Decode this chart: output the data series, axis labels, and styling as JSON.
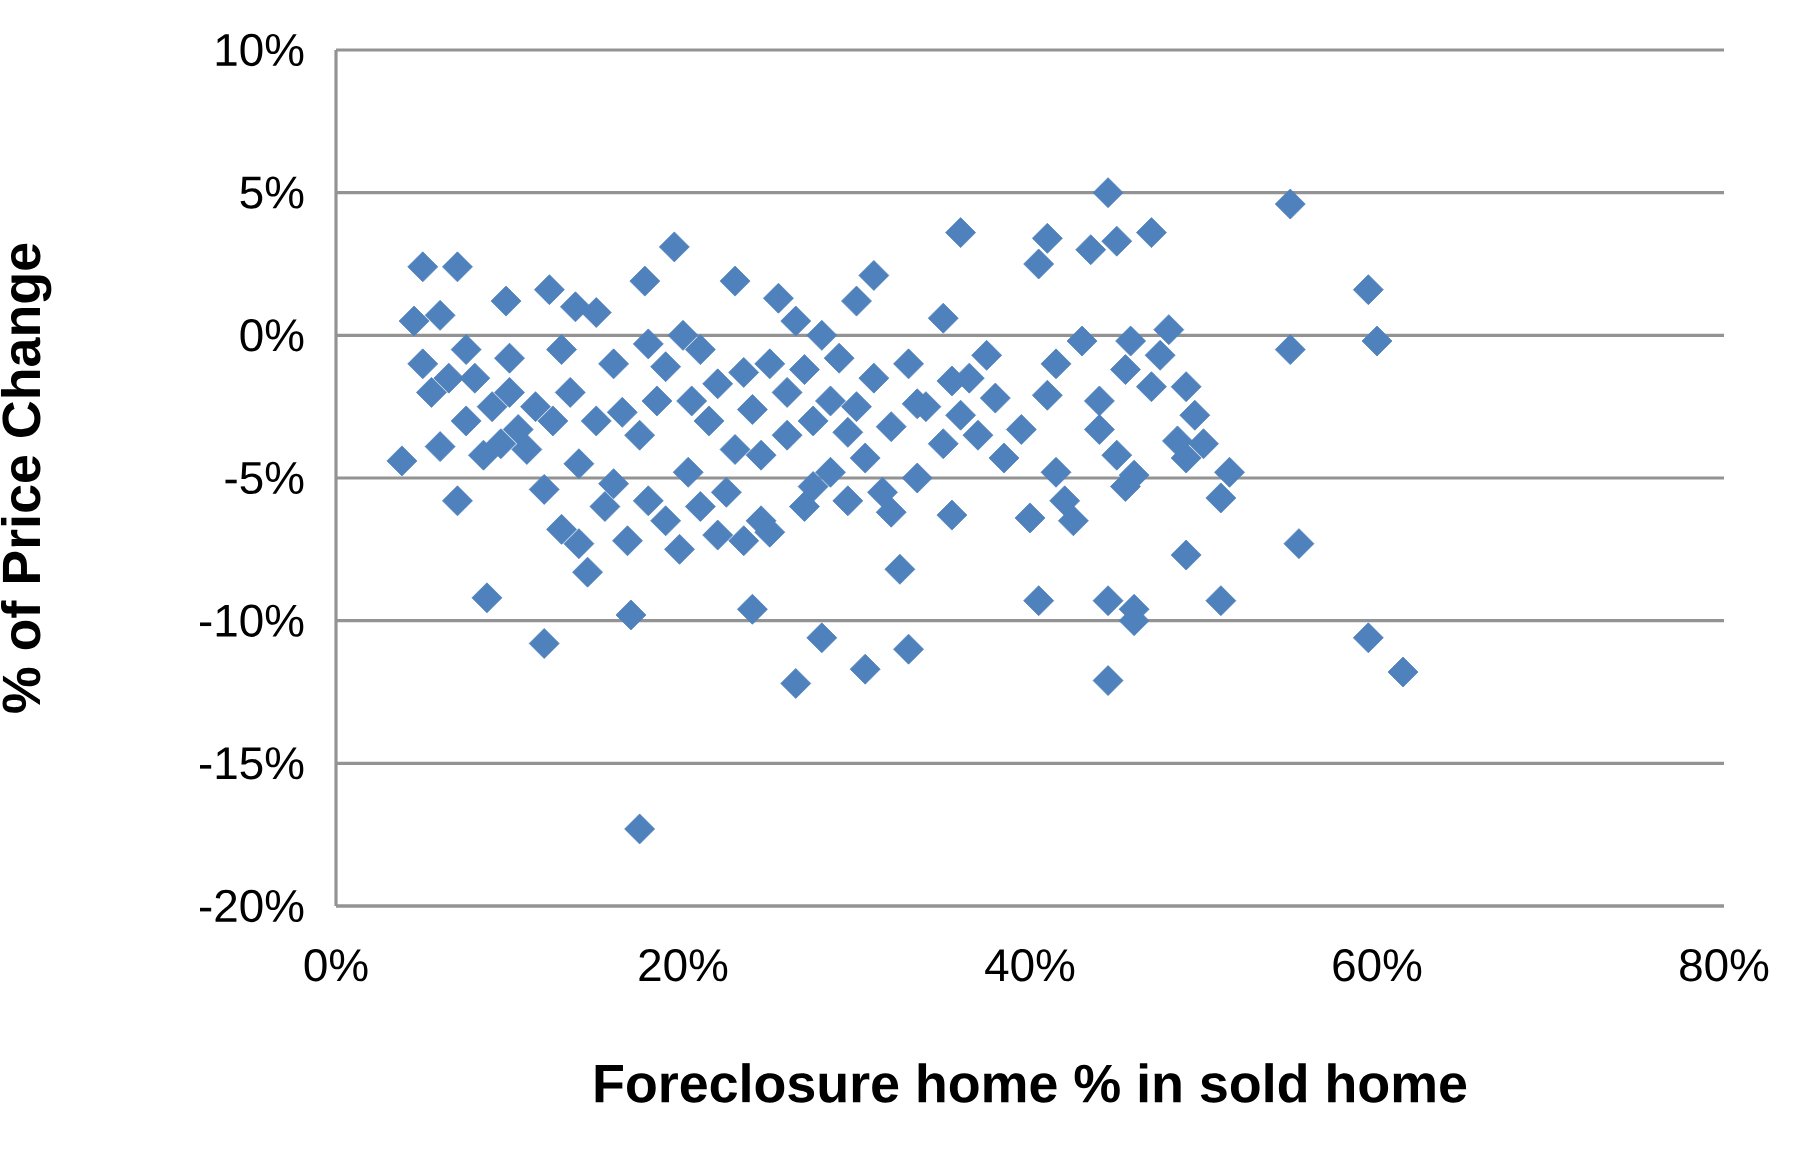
{
  "chart_data": {
    "type": "scatter",
    "xlabel": "Foreclosure home % in sold home",
    "ylabel": "% of Price Change",
    "xlim": [
      0,
      80
    ],
    "xticks": [
      {
        "value": 0,
        "label": "0%"
      },
      {
        "value": 20,
        "label": "20%"
      },
      {
        "value": 40,
        "label": "40%"
      },
      {
        "value": 60,
        "label": "60%"
      },
      {
        "value": 80,
        "label": "80%"
      }
    ],
    "ylim": [
      -20,
      10
    ],
    "yticks": [
      {
        "value": -20,
        "label": "-20%"
      },
      {
        "value": -15,
        "label": "-15%"
      },
      {
        "value": -10,
        "label": "-10%"
      },
      {
        "value": -5,
        "label": "-5%"
      },
      {
        "value": 0,
        "label": "0%"
      },
      {
        "value": 5,
        "label": "5%"
      },
      {
        "value": 10,
        "label": "10%"
      }
    ],
    "grid": "y",
    "marker": "diamond",
    "series": [
      {
        "color": "#4f81bd",
        "x": [
          3.8,
          4.5,
          5,
          5,
          5.5,
          6,
          6,
          6.5,
          7,
          7,
          7.5,
          7.5,
          8,
          8.5,
          8.7,
          9,
          9.5,
          9.8,
          10,
          10,
          10.5,
          11,
          11.5,
          12,
          12,
          12.3,
          12.5,
          13,
          13,
          13.5,
          13.8,
          14,
          14,
          14.5,
          15,
          15,
          15.5,
          16,
          16,
          16.5,
          16.8,
          17,
          17.5,
          17.5,
          17.8,
          18,
          18,
          18.5,
          19,
          19,
          19.5,
          19.8,
          20,
          20.3,
          20.5,
          21,
          21,
          21.5,
          22,
          22,
          22.5,
          23,
          23,
          23.5,
          23.5,
          24,
          24,
          24.5,
          24.5,
          25,
          25,
          25.5,
          26,
          26,
          26.5,
          26.5,
          27,
          27,
          27.5,
          27.5,
          28,
          28,
          28.5,
          28.5,
          29,
          29.5,
          29.5,
          30,
          30,
          30.5,
          30.5,
          31,
          31,
          31.5,
          32,
          32,
          32.5,
          33,
          33,
          33.5,
          33.5,
          34,
          35,
          35,
          35.5,
          35.5,
          36,
          36,
          36.5,
          37,
          37.5,
          38,
          38.5,
          39.5,
          40,
          40.5,
          40.5,
          41,
          41,
          41.5,
          41.5,
          42,
          42.5,
          43,
          43.5,
          44,
          44,
          44.5,
          44.5,
          44.5,
          45,
          45,
          45.5,
          45.8,
          45.5,
          46,
          46,
          46,
          47,
          47,
          47.5,
          48,
          48.5,
          49,
          49,
          49,
          49.5,
          50,
          51,
          51,
          51.5,
          55,
          55,
          55.5,
          59.5,
          59.5,
          60,
          61.5
        ],
        "values": [
          -4.4,
          0.5,
          2.4,
          -1.0,
          -2.0,
          0.7,
          -3.9,
          -1.5,
          2.4,
          -5.8,
          -3.0,
          -0.5,
          -1.5,
          -4.2,
          -9.2,
          -2.5,
          -3.8,
          1.2,
          -0.8,
          -2.0,
          -3.3,
          -4.0,
          -2.5,
          -5.4,
          -10.8,
          1.6,
          -3.0,
          -0.5,
          -6.8,
          -2.0,
          1.0,
          -4.5,
          -7.3,
          -8.3,
          0.8,
          -3.0,
          -6.0,
          -1.0,
          -5.2,
          -2.7,
          -7.2,
          -9.8,
          -17.3,
          -3.5,
          1.9,
          -0.3,
          -5.8,
          -2.3,
          -6.5,
          -1.1,
          3.1,
          -7.5,
          0,
          -4.8,
          -2.3,
          -6.0,
          -0.5,
          -3.0,
          -7.0,
          -1.7,
          -5.5,
          -4.0,
          1.9,
          -1.3,
          -7.2,
          -9.6,
          -2.6,
          -6.5,
          -4.2,
          -6.9,
          -1.0,
          1.3,
          -2.0,
          -3.5,
          -12.2,
          0.5,
          -6.0,
          -1.2,
          -5.3,
          -3.0,
          -10.6,
          0,
          -2.3,
          -4.8,
          -0.8,
          -3.4,
          -5.8,
          1.2,
          -2.5,
          -11.7,
          -4.3,
          2.1,
          -1.5,
          -5.5,
          -3.2,
          -6.2,
          -8.2,
          -1.0,
          -11.0,
          -2.4,
          -5.0,
          -2.5,
          0.6,
          -3.8,
          -6.3,
          -1.6,
          3.6,
          -2.8,
          -1.5,
          -3.5,
          -0.7,
          -2.2,
          -4.3,
          -3.3,
          -6.4,
          2.5,
          -9.3,
          3.4,
          -2.1,
          -1.0,
          -4.8,
          -5.8,
          -6.5,
          -0.2,
          3.0,
          -2.3,
          -3.3,
          5.0,
          -9.3,
          -12.1,
          3.3,
          -4.2,
          -1.2,
          -0.2,
          -5.3,
          -9.6,
          -10.0,
          -4.9,
          3.6,
          -1.8,
          -0.7,
          0.2,
          -3.7,
          -4.3,
          -7.7,
          -1.8,
          -2.8,
          -3.8,
          -5.7,
          -9.3,
          -4.8,
          4.6,
          -0.5,
          -7.3,
          1.6,
          -10.6,
          -0.2,
          -11.8
        ]
      }
    ]
  }
}
